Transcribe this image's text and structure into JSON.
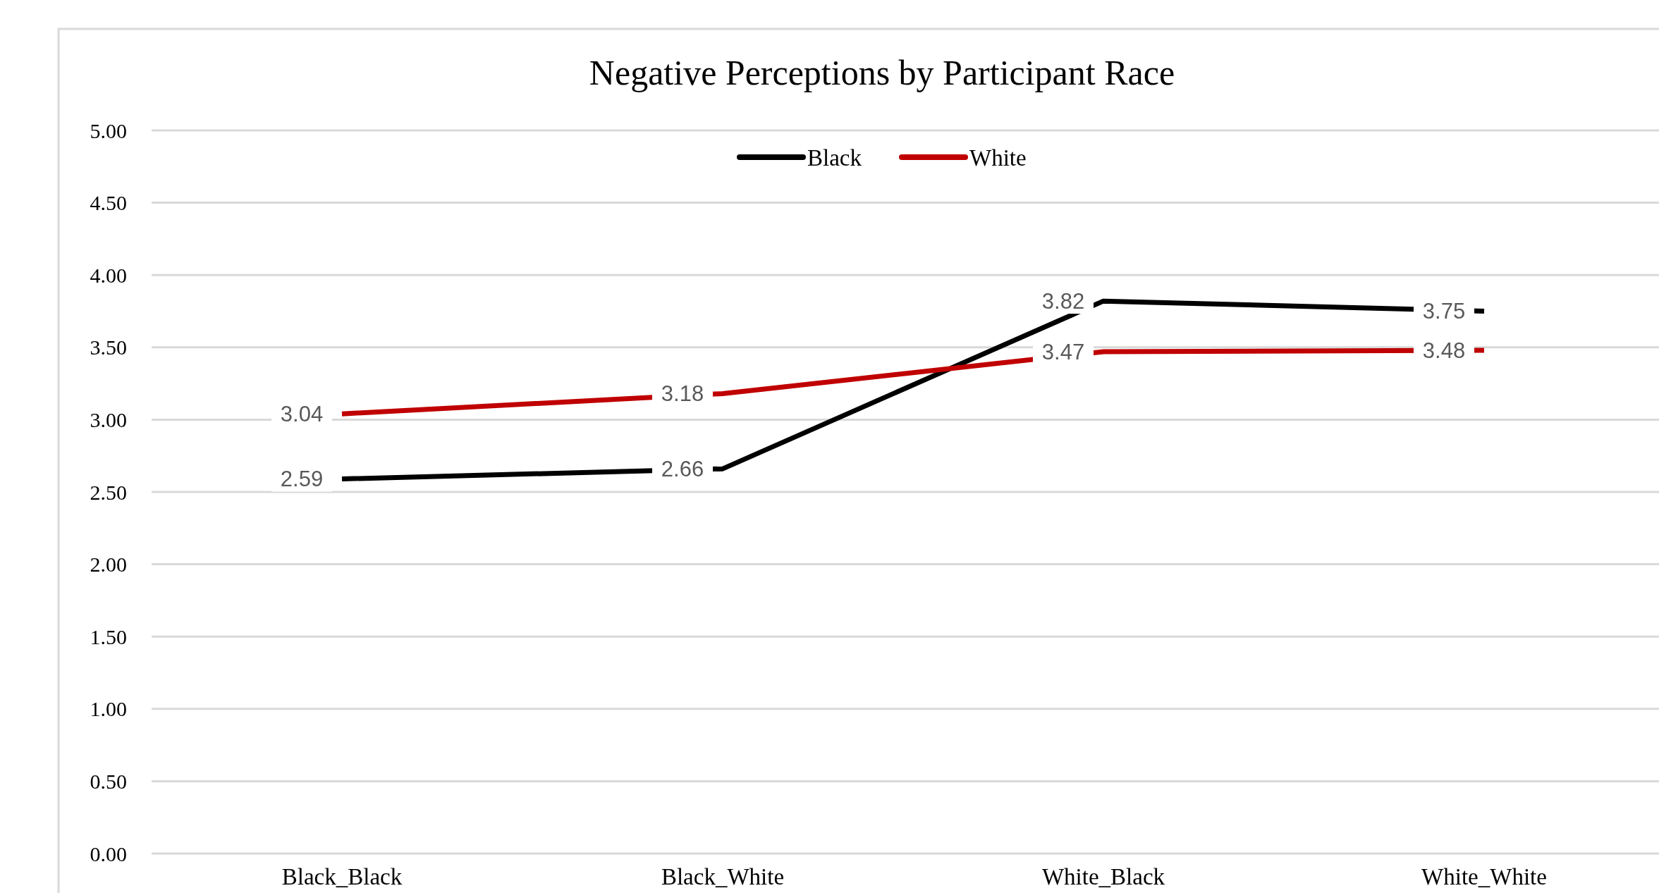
{
  "chart_data": {
    "type": "line",
    "title": "Negative Perceptions by Participant Race",
    "categories": [
      "Black_Black",
      "Black_White",
      "White_Black",
      "White_White"
    ],
    "series": [
      {
        "name": "Black",
        "color": "#000000",
        "values": [
          2.59,
          2.66,
          3.82,
          3.75
        ]
      },
      {
        "name": "White",
        "color": "#c00000",
        "values": [
          3.04,
          3.18,
          3.47,
          3.48
        ]
      }
    ],
    "ylim": [
      0,
      5
    ],
    "yticks": [
      "0.00",
      "0.50",
      "1.00",
      "1.50",
      "2.00",
      "2.50",
      "3.00",
      "3.50",
      "4.00",
      "4.50",
      "5.00"
    ],
    "grid": "y",
    "legend": "top",
    "data_labels": true,
    "line_style": "solid"
  }
}
